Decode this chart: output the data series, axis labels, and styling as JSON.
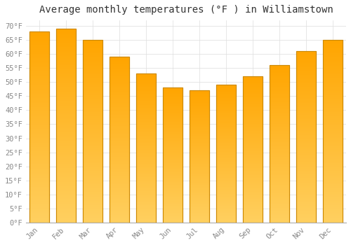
{
  "title": "Average monthly temperatures (°F ) in Williamstown",
  "months": [
    "Jan",
    "Feb",
    "Mar",
    "Apr",
    "May",
    "Jun",
    "Jul",
    "Aug",
    "Sep",
    "Oct",
    "Nov",
    "Dec"
  ],
  "values": [
    68,
    69,
    65,
    59,
    53,
    48,
    47,
    49,
    52,
    56,
    61,
    65
  ],
  "bar_color_top": "#FFAA00",
  "bar_color_bottom": "#FFD060",
  "bar_edge_color": "#CC8800",
  "background_color": "#FFFFFF",
  "plot_bg_color": "#FFFFFF",
  "grid_color": "#DDDDDD",
  "ytick_labels": [
    "0°F",
    "5°F",
    "10°F",
    "15°F",
    "20°F",
    "25°F",
    "30°F",
    "35°F",
    "40°F",
    "45°F",
    "50°F",
    "55°F",
    "60°F",
    "65°F",
    "70°F"
  ],
  "ytick_values": [
    0,
    5,
    10,
    15,
    20,
    25,
    30,
    35,
    40,
    45,
    50,
    55,
    60,
    65,
    70
  ],
  "ylim": [
    0,
    72
  ],
  "title_fontsize": 10,
  "tick_fontsize": 7.5,
  "tick_color": "#888888",
  "font_family": "monospace",
  "bar_width": 0.72
}
